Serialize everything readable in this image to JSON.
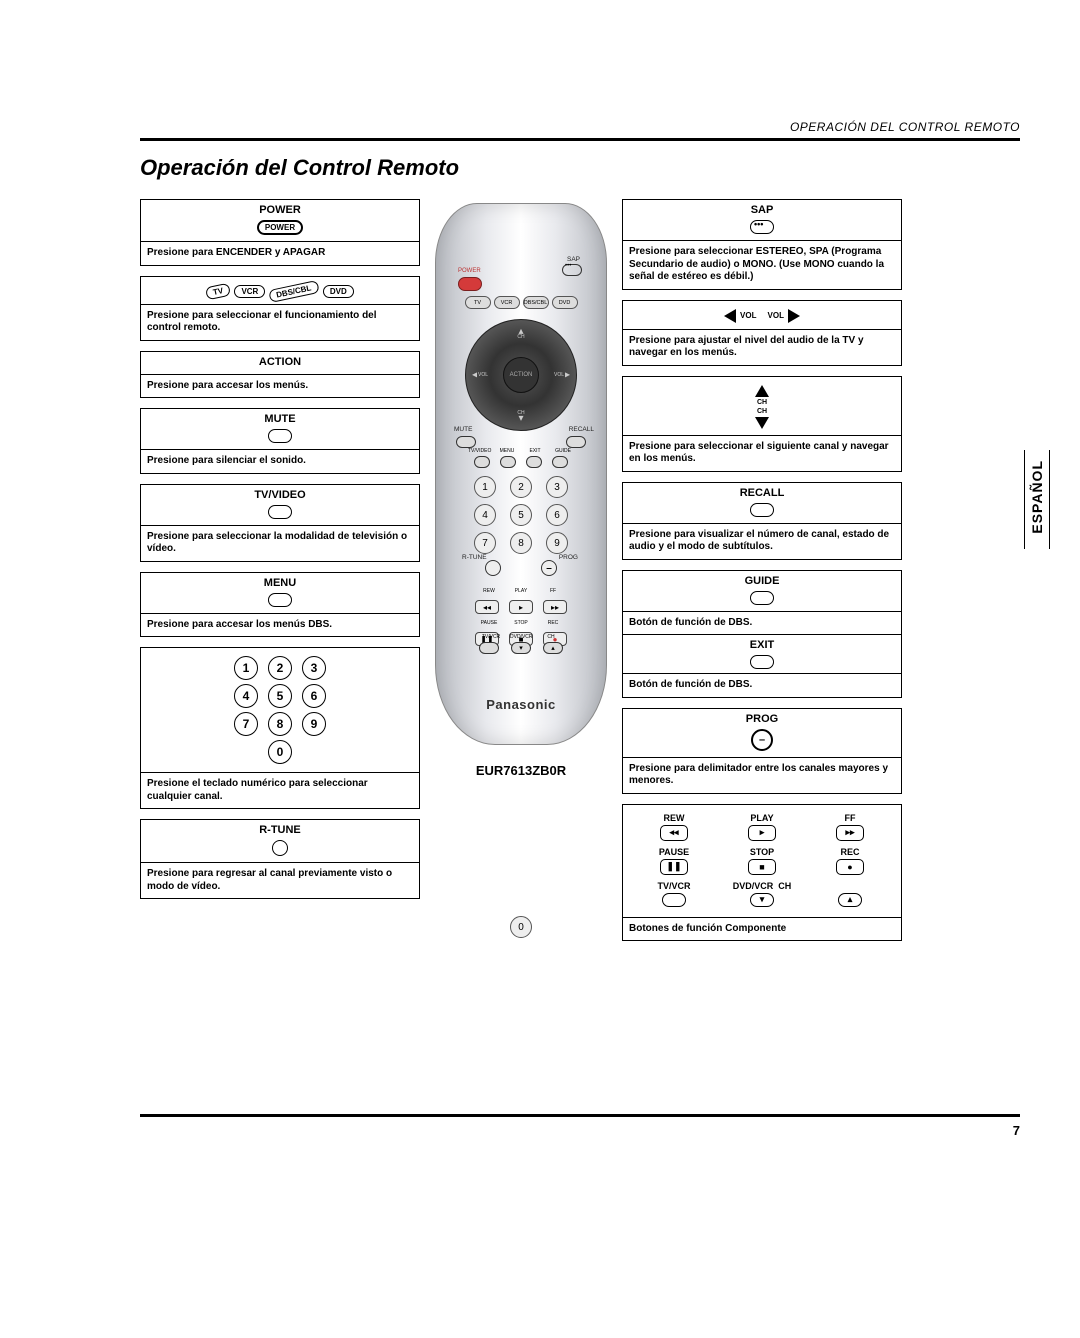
{
  "running_head": "OPERACIÓN DEL CONTROL REMOTO",
  "title": "Operación del Control Remoto",
  "side_tab": "ESPAÑOL",
  "page_number": "7",
  "model": "EUR7613ZB0R",
  "brand": "Panasonic",
  "remote_mode_buttons": [
    "TV",
    "VCR",
    "DBS/CBL",
    "DVD"
  ],
  "remote_labels": {
    "sap": "SAP",
    "power": "POWER",
    "mute": "MUTE",
    "recall": "RECALL",
    "tvvideo": "TV/VIDEO",
    "menu": "MENU",
    "exit": "EXIT",
    "guide": "GUIDE",
    "action": "ACTION",
    "rtune": "R-TUNE",
    "prog": "PROG",
    "ch": "CH",
    "vol": "VOL"
  },
  "left_boxes": [
    {
      "title": "POWER",
      "icon": "power-pill",
      "desc": "Presione para ENCENDER y APAGAR"
    },
    {
      "title": null,
      "icon": "mode-pills",
      "desc": "Presione para seleccionar el funcionamiento del control remoto."
    },
    {
      "title": "ACTION",
      "icon": null,
      "desc": "Presione para accesar los menús."
    },
    {
      "title": "MUTE",
      "icon": "oval",
      "desc": "Presione para silenciar el sonido."
    },
    {
      "title": "TV/VIDEO",
      "icon": "oval",
      "desc": "Presione para seleccionar la modalidad de televisión o vídeo."
    },
    {
      "title": "MENU",
      "icon": "oval",
      "desc": "Presione para accesar los menús DBS."
    },
    {
      "title": null,
      "icon": "keypad",
      "desc": "Presione el teclado numérico para seleccionar cualquier canal."
    },
    {
      "title": "R-TUNE",
      "icon": "circle",
      "desc": "Presione para regresar al canal previamente visto o modo de vídeo."
    }
  ],
  "right_boxes": [
    {
      "title": "SAP",
      "icon": "sap-eye",
      "desc": "Presione para seleccionar ESTEREO, SPA (Programa Secundario de audio) o MONO. (Use MONO cuando la señal de estéreo es débil.)"
    },
    {
      "title": null,
      "icon": "vol-arrows",
      "desc": "Presione para ajustar el nivel del audio de la TV y navegar en los menús."
    },
    {
      "title": null,
      "icon": "ch-arrows",
      "desc": "Presione para seleccionar el siguiente canal y navegar en los menús."
    },
    {
      "title": "RECALL",
      "icon": "oval",
      "desc": "Presione para visualizar el número de canal, estado de audio y el modo de subtítulos."
    },
    {
      "type": "stack",
      "items": [
        {
          "title": "GUIDE",
          "icon": "oval",
          "desc": "Botón de función de DBS."
        },
        {
          "title": "EXIT",
          "icon": "oval",
          "desc": "Botón de función de DBS."
        }
      ]
    },
    {
      "title": "PROG",
      "icon": "prog-circle",
      "desc": "Presione para delimitador entre los canales mayores y menores."
    },
    {
      "type": "components",
      "grid": [
        {
          "label": "REW",
          "glyph": "◂◂"
        },
        {
          "label": "PLAY",
          "glyph": "▸"
        },
        {
          "label": "FF",
          "glyph": "▸▸"
        },
        {
          "label": "PAUSE",
          "glyph": "❚❚"
        },
        {
          "label": "STOP",
          "glyph": "■"
        },
        {
          "label": "REC",
          "glyph": "●"
        },
        {
          "label": "TV/VCR",
          "glyph": "oval"
        },
        {
          "label": "DVD/VCR",
          "glyph": "tri-down",
          "span": "center"
        },
        {
          "label": "CH",
          "glyph": "tri-up",
          "span": "right-label"
        }
      ],
      "footer": "Botones de función Componente"
    }
  ]
}
